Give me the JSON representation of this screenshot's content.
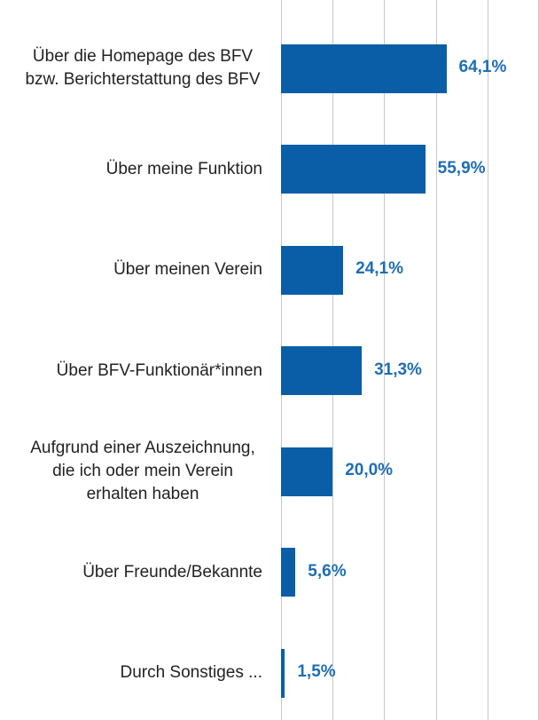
{
  "chart_data": {
    "type": "bar",
    "orientation": "horizontal",
    "categories": [
      "Über die Homepage des BFV bzw. Berichterstattung des BFV",
      "Über meine Funktion",
      "Über meinen Verein",
      "Über BFV-Funktionär*innen",
      "Aufgrund einer Auszeichnung, die ich oder mein Verein erhalten haben",
      "Über Freunde/Bekannte",
      "Durch Sonstiges ..."
    ],
    "values": [
      64.1,
      55.9,
      24.1,
      31.3,
      20.0,
      5.6,
      1.5
    ],
    "value_labels": [
      "64,1%",
      "55,9%",
      "24,1%",
      "31,3%",
      "20,0%",
      "5,6%",
      "1,5%"
    ],
    "color": "#0a5ea8",
    "label_color": "#1f6db3",
    "xlim": [
      0,
      100
    ],
    "xticks": [
      0,
      20,
      40,
      60,
      80,
      100
    ],
    "grid": true
  }
}
